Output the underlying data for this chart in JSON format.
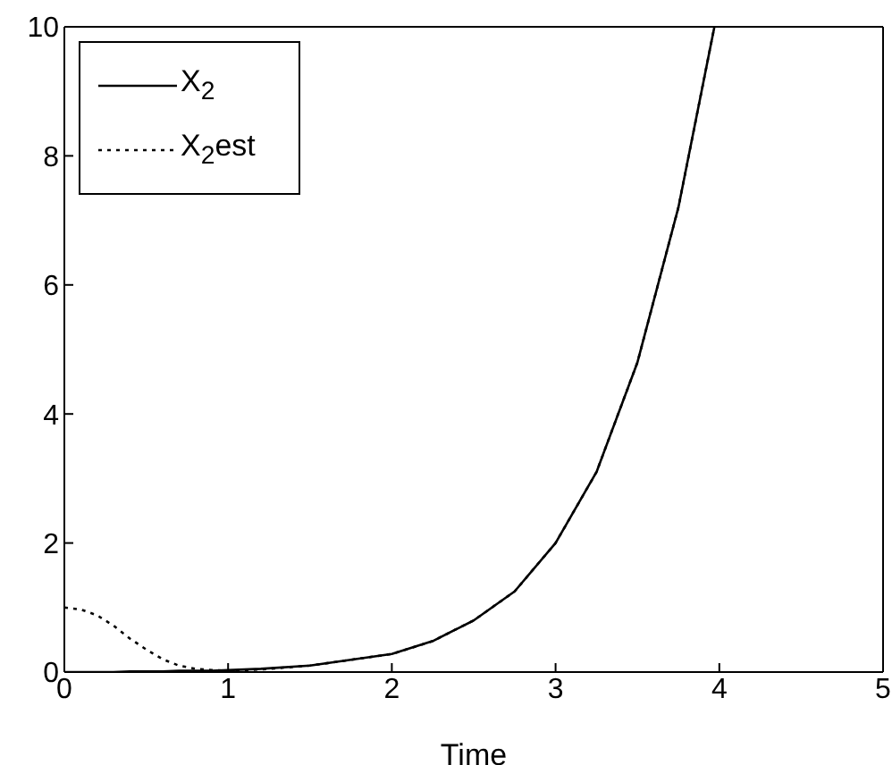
{
  "chart_data": {
    "type": "line",
    "xlabel": "Time",
    "x": [
      0,
      0.1,
      0.2,
      0.3,
      0.4,
      0.5,
      0.6,
      0.7,
      0.8,
      0.9,
      1.0,
      1.2,
      1.5,
      2,
      2.25,
      2.5,
      2.75,
      3,
      3.25,
      3.5,
      3.75,
      3.97
    ],
    "series": [
      {
        "name": "X$_{2}$",
        "color": "#000000",
        "line_style": "solid",
        "values": [
          0,
          0,
          0,
          0,
          0.01,
          0.01,
          0.01,
          0.02,
          0.02,
          0.02,
          0.03,
          0.05,
          0.1,
          0.28,
          0.48,
          0.8,
          1.25,
          2.0,
          3.1,
          4.8,
          7.2,
          10
        ]
      },
      {
        "name": "X$_{2}$est",
        "color": "#000000",
        "line_style": "dotted",
        "values": [
          1,
          0.97,
          0.88,
          0.72,
          0.52,
          0.35,
          0.2,
          0.1,
          0.05,
          0.03,
          0.02,
          0.04,
          0.1,
          0.28,
          0.48,
          0.8,
          1.25,
          2.0,
          3.1,
          4.8,
          7.2,
          10
        ]
      }
    ],
    "xlim": [
      0,
      5
    ],
    "xticks": [
      0,
      1,
      2,
      3,
      4,
      5
    ],
    "ylim": [
      0,
      10
    ],
    "yticks": [
      0,
      2,
      4,
      6,
      8,
      10
    ],
    "grid": false,
    "legend": "top left",
    "marker": "none"
  }
}
